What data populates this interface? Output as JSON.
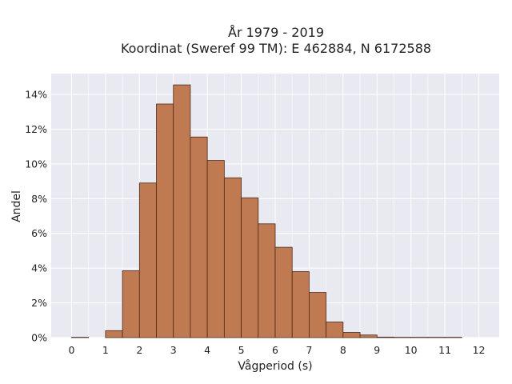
{
  "chart_data": {
    "type": "bar",
    "title_line1": "År 1979 - 2019",
    "title_line2": "Koordinat (Sweref 99 TM): E 462884, N 6172588",
    "xlabel": "Vågperiod (s)",
    "ylabel": "Andel",
    "xlim": [
      -0.6,
      12.6
    ],
    "ylim": [
      0,
      15.2
    ],
    "x_ticks": [
      0,
      1,
      2,
      3,
      4,
      5,
      6,
      7,
      8,
      9,
      10,
      11,
      12
    ],
    "x_tick_labels": [
      "0",
      "1",
      "2",
      "3",
      "4",
      "5",
      "6",
      "7",
      "8",
      "9",
      "10",
      "11",
      "12"
    ],
    "y_ticks": [
      0,
      2,
      4,
      6,
      8,
      10,
      12,
      14
    ],
    "y_tick_labels": [
      "0%",
      "2%",
      "4%",
      "6%",
      "8%",
      "10%",
      "12%",
      "14%"
    ],
    "bin_width": 0.5,
    "bin_starts": [
      0,
      0.5,
      1,
      1.5,
      2,
      2.5,
      3,
      3.5,
      4,
      4.5,
      5,
      5.5,
      6,
      6.5,
      7,
      7.5,
      8,
      8.5,
      9,
      9.5,
      10,
      10.5,
      11
    ],
    "values": [
      0.02,
      0,
      0.4,
      3.85,
      8.9,
      13.45,
      14.55,
      11.55,
      10.2,
      9.2,
      8.05,
      6.55,
      5.2,
      3.8,
      2.6,
      0.9,
      0.3,
      0.15,
      0.03,
      0.02,
      0.02,
      0.02,
      0.02
    ],
    "grid": true,
    "background_color": "#e9e9f1",
    "bar_color": "#c07a52",
    "bar_edge_color": "#4a2a1a"
  }
}
